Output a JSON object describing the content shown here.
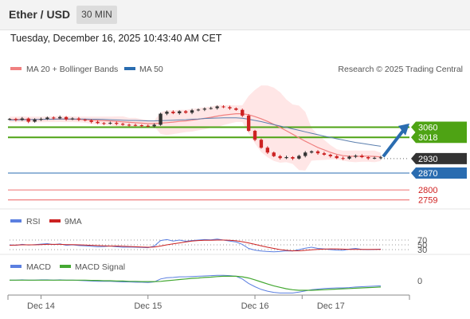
{
  "header": {
    "title": "Ether / USD",
    "interval": "30 MIN",
    "datetime": "Tuesday, December 16, 2025 10:43:40 AM CET"
  },
  "legend": {
    "ma20": "MA 20 + Bollinger Bands",
    "ma50": "MA 50",
    "credit": "Research © 2025 Trading Central",
    "rsi": "RSI",
    "rsi_ma": "9MA",
    "macd": "MACD",
    "macd_signal": "MACD Signal"
  },
  "colors": {
    "green_level": "#4ea314",
    "blue_level": "#2a6cb0",
    "red_level": "#f08080",
    "current_box": "#333333",
    "ma20": "#f08080",
    "ma50": "#5b7fae",
    "band_fill": "#ffe3e3",
    "candle_up": "#333333",
    "candle_down": "#cc2222",
    "rsi": "#5b7fe0",
    "rsi_ma": "#cc2222",
    "macd": "#5b7fe0",
    "macd_signal": "#44a832",
    "arrow": "#2a6cb0"
  },
  "chart_data": [
    {
      "type": "line",
      "subtype": "candlestick",
      "title": "Ether / USD",
      "xlabel": "",
      "ylabel": "",
      "x_ticks": [
        "Dec 14",
        "Dec 15",
        "Dec 16",
        "Dec 17"
      ],
      "ylim": [
        2740,
        3175
      ],
      "price_levels": [
        {
          "value": 3060,
          "label": "3060",
          "kind": "resistance"
        },
        {
          "value": 3018,
          "label": "3018",
          "kind": "resistance"
        },
        {
          "value": 2930,
          "label": "2930",
          "kind": "current"
        },
        {
          "value": 2870,
          "label": "2870",
          "kind": "pivot"
        },
        {
          "value": 2800,
          "label": "2800",
          "kind": "support"
        },
        {
          "value": 2759,
          "label": "2759",
          "kind": "support"
        }
      ],
      "forecast": "up",
      "series": [
        {
          "name": "Price",
          "values": [
            3094,
            3090,
            3096,
            3083,
            3092,
            3094,
            3100,
            3097,
            3102,
            3093,
            3096,
            3091,
            3088,
            3082,
            3077,
            3075,
            3078,
            3074,
            3070,
            3069,
            3068,
            3066,
            3064,
            3070,
            3116,
            3124,
            3118,
            3126,
            3120,
            3130,
            3133,
            3137,
            3139,
            3146,
            3143,
            3138,
            3132,
            3108,
            3045,
            3008,
            2975,
            2955,
            2940,
            2932,
            2936,
            2930,
            2941,
            2955,
            2960,
            2952,
            2946,
            2940,
            2932,
            2930,
            2938,
            2942,
            2936,
            2931,
            2933,
            2935
          ]
        },
        {
          "name": "MA 20",
          "values": [
            3092,
            3092,
            3093,
            3092,
            3092,
            3092,
            3093,
            3093,
            3094,
            3093,
            3093,
            3092,
            3091,
            3089,
            3088,
            3087,
            3086,
            3084,
            3082,
            3080,
            3079,
            3077,
            3075,
            3075,
            3077,
            3079,
            3081,
            3084,
            3086,
            3089,
            3093,
            3097,
            3101,
            3106,
            3110,
            3113,
            3116,
            3116,
            3112,
            3104,
            3095,
            3084,
            3072,
            3059,
            3045,
            3031,
            3016,
            3002,
            2989,
            2976,
            2966,
            2956,
            2948,
            2942,
            2940,
            2939,
            2940,
            2940,
            2939,
            2937
          ]
        },
        {
          "name": "MA 50",
          "values": [
            3090,
            3090,
            3091,
            3091,
            3092,
            3092,
            3093,
            3093,
            3094,
            3094,
            3094,
            3094,
            3094,
            3093,
            3093,
            3092,
            3091,
            3090,
            3089,
            3088,
            3088,
            3087,
            3086,
            3086,
            3087,
            3088,
            3089,
            3090,
            3091,
            3093,
            3094,
            3096,
            3097,
            3098,
            3099,
            3099,
            3099,
            3097,
            3093,
            3088,
            3083,
            3077,
            3071,
            3065,
            3059,
            3053,
            3047,
            3041,
            3035,
            3029,
            3023,
            3018,
            3012,
            3007,
            3002,
            2997,
            2993,
            2989,
            2985,
            2981
          ]
        }
      ]
    },
    {
      "type": "line",
      "title": "RSI",
      "xlabel": "",
      "ylabel": "",
      "y_ticks": [
        70,
        50,
        30
      ],
      "ylim": [
        0,
        100
      ],
      "series": [
        {
          "name": "RSI",
          "values": [
            50,
            48,
            52,
            49,
            51,
            53,
            55,
            51,
            54,
            48,
            50,
            47,
            46,
            44,
            42,
            43,
            45,
            42,
            40,
            41,
            40,
            39,
            38,
            45,
            68,
            72,
            66,
            70,
            65,
            68,
            70,
            72,
            71,
            74,
            70,
            66,
            62,
            52,
            35,
            28,
            24,
            22,
            21,
            22,
            25,
            24,
            30,
            36,
            40,
            35,
            33,
            30,
            28,
            27,
            32,
            35,
            31,
            30,
            31,
            32
          ]
        },
        {
          "name": "9MA",
          "values": [
            48,
            49,
            50,
            50,
            50,
            51,
            52,
            52,
            52,
            51,
            51,
            50,
            49,
            48,
            47,
            46,
            45,
            45,
            44,
            43,
            42,
            41,
            40,
            41,
            45,
            50,
            54,
            58,
            62,
            66,
            68,
            69,
            69,
            70,
            70,
            69,
            67,
            63,
            58,
            52,
            46,
            40,
            35,
            30,
            27,
            25,
            25,
            27,
            29,
            31,
            32,
            33,
            33,
            32,
            31,
            31,
            31,
            31,
            31,
            31
          ]
        }
      ]
    },
    {
      "type": "line",
      "title": "MACD",
      "xlabel": "",
      "ylabel": "",
      "y_ticks": [
        0
      ],
      "series": [
        {
          "name": "MACD",
          "values": [
            2,
            2,
            3,
            2,
            2,
            3,
            3,
            2,
            3,
            2,
            2,
            1,
            0,
            -1,
            -2,
            -2,
            -2,
            -3,
            -4,
            -4,
            -5,
            -5,
            -6,
            -4,
            6,
            10,
            11,
            13,
            13,
            14,
            15,
            16,
            17,
            18,
            18,
            17,
            15,
            6,
            -9,
            -20,
            -29,
            -35,
            -39,
            -41,
            -41,
            -41,
            -38,
            -34,
            -30,
            -28,
            -26,
            -25,
            -24,
            -24,
            -23,
            -21,
            -20,
            -19,
            -18,
            -17
          ]
        },
        {
          "name": "MACD Signal",
          "values": [
            2,
            2,
            2,
            2,
            2,
            2,
            2,
            2,
            2,
            2,
            2,
            2,
            2,
            1,
            1,
            0,
            0,
            -1,
            -1,
            -2,
            -2,
            -3,
            -3,
            -3,
            -2,
            0,
            2,
            4,
            6,
            8,
            9,
            11,
            12,
            14,
            15,
            15,
            15,
            13,
            9,
            3,
            -4,
            -11,
            -17,
            -22,
            -27,
            -30,
            -32,
            -32,
            -32,
            -31,
            -30,
            -29,
            -28,
            -27,
            -26,
            -25,
            -24,
            -23,
            -22,
            -21
          ]
        }
      ]
    }
  ]
}
